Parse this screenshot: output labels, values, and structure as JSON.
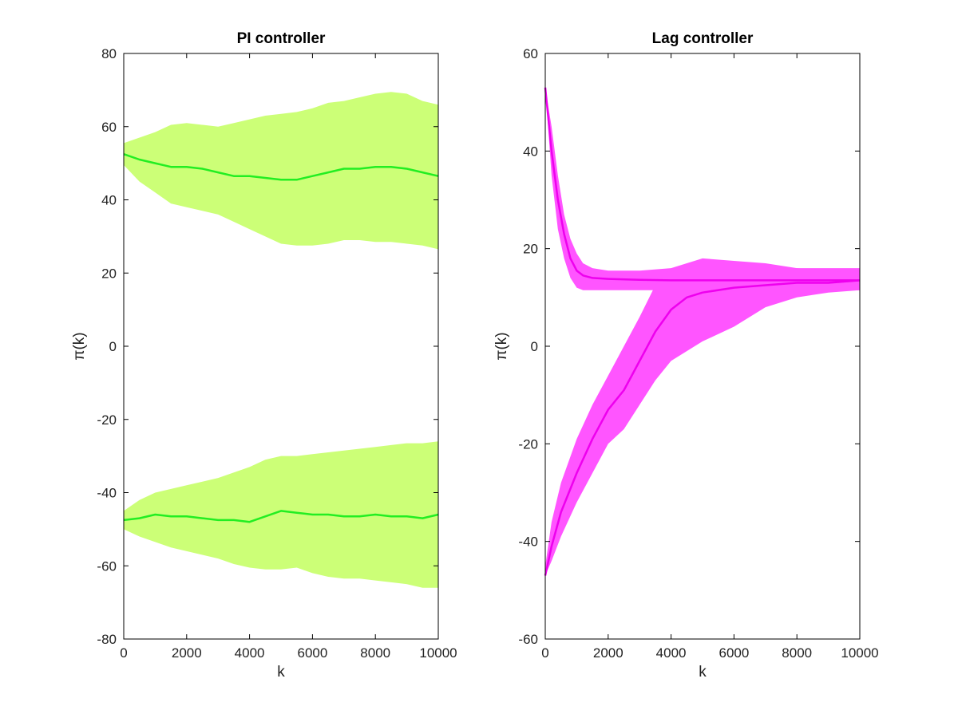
{
  "chart_data": [
    {
      "type": "area",
      "title": "PI controller",
      "xlabel": "k",
      "ylabel": "π(k)",
      "xlim": [
        0,
        10000
      ],
      "ylim": [
        -80,
        80
      ],
      "xticks": [
        0,
        2000,
        4000,
        6000,
        8000,
        10000
      ],
      "yticks": [
        -80,
        -60,
        -40,
        -20,
        0,
        20,
        40,
        60,
        80
      ],
      "xtick_labels": [
        "0",
        "2000",
        "4000",
        "6000",
        "8000",
        "10000"
      ],
      "ytick_labels": [
        "-80",
        "-60",
        "-40",
        "-20",
        "0",
        "20",
        "40",
        "60",
        "80"
      ],
      "grid": false,
      "colors": {
        "band": "#ccff77",
        "line": "#22ee22"
      },
      "series": [
        {
          "x": [
            0,
            500,
            1000,
            1500,
            2000,
            2500,
            3000,
            3500,
            4000,
            4500,
            5000,
            5500,
            6000,
            6500,
            7000,
            7500,
            8000,
            8500,
            9000,
            9500,
            10000
          ],
          "mean": [
            52.5,
            51,
            50,
            49,
            49,
            48.5,
            47.5,
            46.5,
            46.5,
            46,
            45.5,
            45.5,
            46.5,
            47.5,
            48.5,
            48.5,
            49,
            49,
            48.5,
            47.5,
            46.5
          ],
          "upper": [
            55.5,
            57,
            58.5,
            60.5,
            61,
            60.5,
            60,
            61,
            62,
            63,
            63.5,
            64,
            65,
            66.5,
            67,
            68,
            69,
            69.5,
            69,
            67,
            66
          ],
          "lower": [
            49.5,
            45,
            42,
            39,
            38,
            37,
            36,
            34,
            32,
            30,
            28,
            27.5,
            27.5,
            28,
            29,
            29,
            28.5,
            28.5,
            28,
            27.5,
            26.5
          ]
        },
        {
          "x": [
            0,
            500,
            1000,
            1500,
            2000,
            2500,
            3000,
            3500,
            4000,
            4500,
            5000,
            5500,
            6000,
            6500,
            7000,
            7500,
            8000,
            8500,
            9000,
            9500,
            10000
          ],
          "mean": [
            -47.5,
            -47,
            -46,
            -46.5,
            -46.5,
            -47,
            -47.5,
            -47.5,
            -48,
            -46.5,
            -45,
            -45.5,
            -46,
            -46,
            -46.5,
            -46.5,
            -46,
            -46.5,
            -46.5,
            -47,
            -46
          ],
          "upper": [
            -45,
            -42,
            -40,
            -39,
            -38,
            -37,
            -36,
            -34.5,
            -33,
            -31,
            -30,
            -30,
            -29.5,
            -29,
            -28.5,
            -28,
            -27.5,
            -27,
            -26.5,
            -26.5,
            -26
          ],
          "lower": [
            -50,
            -52,
            -53.5,
            -55,
            -56,
            -57,
            -58,
            -59.5,
            -60.5,
            -61,
            -61,
            -60.5,
            -62,
            -63,
            -63.5,
            -63.5,
            -64,
            -64.5,
            -65,
            -66,
            -66
          ]
        }
      ]
    },
    {
      "type": "area",
      "title": "Lag controller",
      "xlabel": "k",
      "ylabel": "π(k)",
      "xlim": [
        0,
        10000
      ],
      "ylim": [
        -60,
        60
      ],
      "xticks": [
        0,
        2000,
        4000,
        6000,
        8000,
        10000
      ],
      "yticks": [
        -60,
        -40,
        -20,
        0,
        20,
        40,
        60
      ],
      "xtick_labels": [
        "0",
        "2000",
        "4000",
        "6000",
        "8000",
        "10000"
      ],
      "ytick_labels": [
        "-60",
        "-40",
        "-20",
        "0",
        "20",
        "40",
        "60"
      ],
      "grid": false,
      "colors": {
        "band": "#ff55ff",
        "line": "#ee00ee"
      },
      "series": [
        {
          "x": [
            0,
            200,
            400,
            600,
            800,
            1000,
            1200,
            1500,
            2000,
            3000,
            4000,
            5000,
            6000,
            7000,
            8000,
            9000,
            10000
          ],
          "mean": [
            53,
            40,
            30,
            23,
            18,
            15.5,
            14.5,
            14,
            13.8,
            13.6,
            13.5,
            13.5,
            13.5,
            13.5,
            13.5,
            13.5,
            13.5
          ],
          "upper": [
            53,
            45,
            35,
            27,
            22,
            19,
            17,
            16,
            15.5,
            15.5,
            16,
            16,
            16,
            16,
            16,
            16,
            16
          ],
          "lower": [
            53,
            35,
            24,
            18,
            14,
            12,
            11.5,
            11.5,
            11.5,
            11.5,
            11.5,
            11.5,
            11.5,
            11.5,
            11.5,
            11.5,
            11.5
          ]
        },
        {
          "x": [
            0,
            200,
            500,
            1000,
            1500,
            2000,
            2500,
            3000,
            3500,
            4000,
            4500,
            5000,
            6000,
            7000,
            8000,
            9000,
            10000
          ],
          "mean": [
            -47,
            -41,
            -34,
            -26,
            -19,
            -13,
            -9,
            -3,
            3,
            7.5,
            10,
            11,
            12,
            12.5,
            13,
            13,
            13.5
          ],
          "upper": [
            -45,
            -36,
            -28,
            -19,
            -12,
            -6,
            0,
            6,
            12.5,
            16,
            17,
            18,
            17.5,
            17,
            16,
            15.5,
            15
          ],
          "lower": [
            -47,
            -44,
            -39,
            -32,
            -26,
            -20,
            -17,
            -12,
            -7,
            -3,
            -1,
            1,
            4,
            8,
            10,
            11,
            11.5
          ]
        }
      ]
    }
  ]
}
